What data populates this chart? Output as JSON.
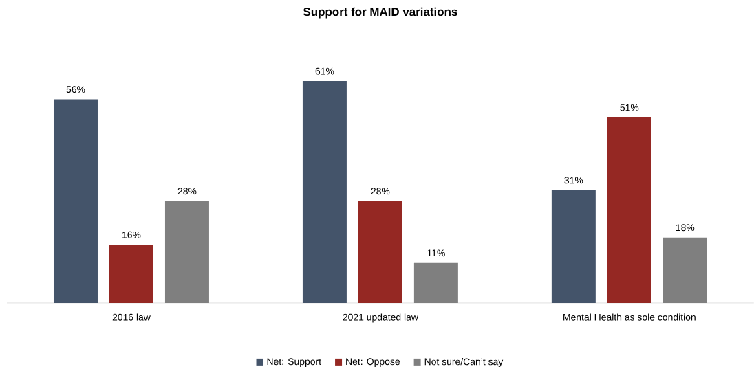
{
  "chart_data": {
    "type": "bar",
    "title": "Support for MAID variations",
    "categories": [
      "2016 law",
      "2021 updated law",
      "Mental Health as sole condition"
    ],
    "series": [
      {
        "name": "Net: Support",
        "color": "#44546a",
        "values": [
          56,
          61,
          31
        ],
        "value_labels": [
          "56%",
          "61%",
          "31%"
        ]
      },
      {
        "name": "Net: Oppose",
        "color": "#952823",
        "values": [
          16,
          28,
          51
        ],
        "value_labels": [
          "16%",
          "28%",
          "51%"
        ]
      },
      {
        "name": "Not sure/Can’t say",
        "color": "#7f7f7f",
        "values": [
          28,
          11,
          18
        ],
        "value_labels": [
          "28%",
          "11%",
          "18%"
        ]
      }
    ],
    "legend": "bottom",
    "tick_labels": "x"
  }
}
